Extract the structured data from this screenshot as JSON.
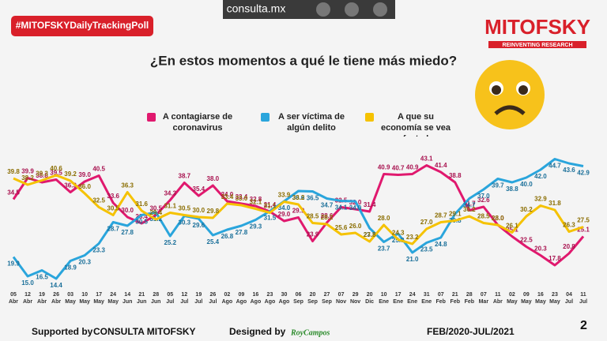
{
  "header": {
    "hashtag": "#MITOFSKYDailyTrackingPoll",
    "site": "consulta.mx",
    "brand": "MITOFSKY",
    "tagline": "REINVENTING RESEARCH"
  },
  "chart_data": {
    "type": "line",
    "title": "¿En estos momentos a qué le tiene más miedo?",
    "categories": [
      {
        "day": "05",
        "month": "Abr"
      },
      {
        "day": "12",
        "month": "Abr"
      },
      {
        "day": "19",
        "month": "Abr"
      },
      {
        "day": "26",
        "month": "Abr"
      },
      {
        "day": "03",
        "month": "May"
      },
      {
        "day": "10",
        "month": "May"
      },
      {
        "day": "17",
        "month": "May"
      },
      {
        "day": "24",
        "month": "May"
      },
      {
        "day": "14",
        "month": "Jun"
      },
      {
        "day": "21",
        "month": "Jun"
      },
      {
        "day": "28",
        "month": "Jun"
      },
      {
        "day": "05",
        "month": "Jul"
      },
      {
        "day": "12",
        "month": "Jul"
      },
      {
        "day": "19",
        "month": "Jul"
      },
      {
        "day": "26",
        "month": "Jul"
      },
      {
        "day": "02",
        "month": "Ago"
      },
      {
        "day": "09",
        "month": "Ago"
      },
      {
        "day": "16",
        "month": "Ago"
      },
      {
        "day": "23",
        "month": "Ago"
      },
      {
        "day": "30",
        "month": "Ago"
      },
      {
        "day": "06",
        "month": "Sep"
      },
      {
        "day": "20",
        "month": "Sep"
      },
      {
        "day": "27",
        "month": "Sep"
      },
      {
        "day": "07",
        "month": "Nov"
      },
      {
        "day": "29",
        "month": "Nov"
      },
      {
        "day": "20",
        "month": "Dic"
      },
      {
        "day": "10",
        "month": "Ene"
      },
      {
        "day": "17",
        "month": "Ene"
      },
      {
        "day": "24",
        "month": "Ene"
      },
      {
        "day": "31",
        "month": "Ene"
      },
      {
        "day": "07",
        "month": "Feb"
      },
      {
        "day": "21",
        "month": "Feb"
      },
      {
        "day": "28",
        "month": "Feb"
      },
      {
        "day": "07",
        "month": "Mar"
      },
      {
        "day": "11",
        "month": "Abr"
      },
      {
        "day": "02",
        "month": "May"
      },
      {
        "day": "09",
        "month": "May"
      },
      {
        "day": "16",
        "month": "May"
      },
      {
        "day": "23",
        "month": "May"
      },
      {
        "day": "04",
        "month": "Jul"
      },
      {
        "day": "11",
        "month": "Jul"
      }
    ],
    "ylim": [
      12,
      48
    ],
    "series": [
      {
        "name": "A contagiarse de coronavirus",
        "color": "#e0196e",
        "label_color": "#a8124f",
        "values": [
          34.5,
          39.9,
          38.8,
          39.5,
          36.3,
          39.0,
          40.5,
          33.6,
          30.0,
          28.4,
          30.5,
          34.3,
          38.7,
          35.4,
          38.0,
          34.0,
          33.4,
          32.8,
          31.4,
          29.0,
          29.9,
          23.9,
          28.6,
          32.5,
          32.0,
          31.4,
          40.9,
          40.7,
          40.9,
          43.1,
          41.4,
          38.8,
          31.7,
          32.6,
          28.0,
          25.1,
          22.5,
          20.3,
          17.8,
          20.8,
          25.1
        ],
        "value_labels": [
          "34.5",
          "39.9",
          "38.8",
          "39.5",
          "36.3",
          "39.0",
          "40.5",
          "33.6",
          "30.0",
          "28.4",
          "30.5",
          "34.3",
          "38.7",
          "35.4",
          "38.0",
          "34.0",
          "33.4",
          "32.8",
          "31.4",
          "29.0",
          "29.9",
          "23.9",
          "28.6",
          "32.5",
          "32.0",
          "31.4",
          "40.9",
          "40.7",
          "40.9",
          "43.1",
          "41.4",
          "38.8",
          "31.7",
          "32.6",
          "28.0",
          "25.1",
          "22.5",
          "20.3",
          "17.8",
          "20.8",
          "25.1"
        ]
      },
      {
        "name": "A ser víctima de algún delito",
        "color": "#2aa5dc",
        "label_color": "#1a6f99",
        "values": [
          19.9,
          15.0,
          16.5,
          14.4,
          18.9,
          20.3,
          23.3,
          28.7,
          27.8,
          30.5,
          31.2,
          25.2,
          30.3,
          29.6,
          25.4,
          26.8,
          27.8,
          29.3,
          31.5,
          34.0,
          36.6,
          36.5,
          34.7,
          34.1,
          34.0,
          27.2,
          23.7,
          25.8,
          21.0,
          23.5,
          24.8,
          30.8,
          34.7,
          37.0,
          39.7,
          38.8,
          40.0,
          42.0,
          44.7,
          43.6,
          42.9
        ],
        "value_labels": [
          "19.9",
          "15.0",
          "16.5",
          "14.4",
          "18.9",
          "20.3",
          "23.3",
          "28.7",
          "27.8",
          "30.5",
          "31.2",
          "25.2",
          "30.3",
          "29.6",
          "25.4",
          "26.8",
          "27.8",
          "29.3",
          "31.5",
          "34.0",
          "36.6",
          "36.5",
          "34.7",
          "34.1",
          "34.0",
          "27.2",
          "23.7",
          "25.8",
          "21.0",
          "23.5",
          "24.8",
          "30.8",
          "34.7",
          "37.0",
          "39.7",
          "38.8",
          "40.0",
          "42.0",
          "44.7",
          "43.6",
          "42.9"
        ]
      },
      {
        "name": "A que su economía se vea afectada",
        "color": "#f5c200",
        "label_color": "#8a6d00",
        "values": [
          39.8,
          38.2,
          39.3,
          40.6,
          39.2,
          36.0,
          32.5,
          30.5,
          36.3,
          31.6,
          29.4,
          31.1,
          30.5,
          30.0,
          29.8,
          33.4,
          33.0,
          32.1,
          31.1,
          33.9,
          33.2,
          28.5,
          28.2,
          25.6,
          26.0,
          23.8,
          28.0,
          24.3,
          23.2,
          27.0,
          28.7,
          29.1,
          30.2,
          28.5,
          28.0,
          26.1,
          30.2,
          32.9,
          31.8,
          26.3,
          27.5
        ],
        "value_labels": [
          "39.8",
          "38.2",
          "39.3",
          "40.6",
          "39.2",
          "36.0",
          "32.5",
          "30.5",
          "36.3",
          "31.6",
          "29.4",
          "31.1",
          "30.5",
          "30.0",
          "29.8",
          "33.4",
          "33.0",
          "32.1",
          "31.1",
          "33.9",
          "33.2",
          "28.5",
          "28.2",
          "25.6",
          "26.0",
          "23.8",
          "28.0",
          "24.3",
          "23.2",
          "27.0",
          "28.7",
          "29.1",
          "30.2",
          "28.5",
          "28.0",
          "26.1",
          "30.2",
          "32.9",
          "31.8",
          "26.3",
          "27.5"
        ]
      }
    ]
  },
  "footer": {
    "supported_label": "Supported by",
    "supporters": "CONSULTA  MITOFSKY",
    "designed_label": "Designed by",
    "designer": "RoyCampos",
    "period": "FEB/2020-JUL/2021",
    "page": "2"
  }
}
